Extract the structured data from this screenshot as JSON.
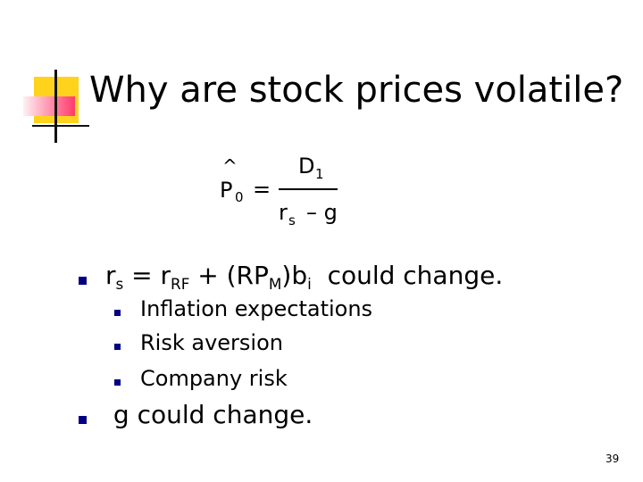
{
  "title": "Why are stock prices volatile?",
  "formula": {
    "hat": "^",
    "lhs": "P",
    "lhs_sub": "0",
    "equals": "=",
    "numerator": "D",
    "numerator_sub": "1",
    "denominator": "r",
    "denominator_sub": "s",
    "denominator_rest": "– g"
  },
  "bullets": [
    {
      "parts": [
        {
          "text": "r"
        },
        {
          "text": "s",
          "sub": true
        },
        {
          "text": " = r"
        },
        {
          "text": "RF",
          "sub": true
        },
        {
          "text": " + (RP"
        },
        {
          "text": "M",
          "sub": true
        },
        {
          "text": ")b"
        },
        {
          "text": "i",
          "sub": true
        },
        {
          "text": "  could change."
        }
      ],
      "sub_bullets": [
        "Inflation expectations",
        "Risk aversion",
        "Company risk"
      ]
    },
    {
      "parts": [
        {
          "text": " g could change."
        }
      ],
      "sub_bullets": []
    }
  ],
  "page_number": "39"
}
